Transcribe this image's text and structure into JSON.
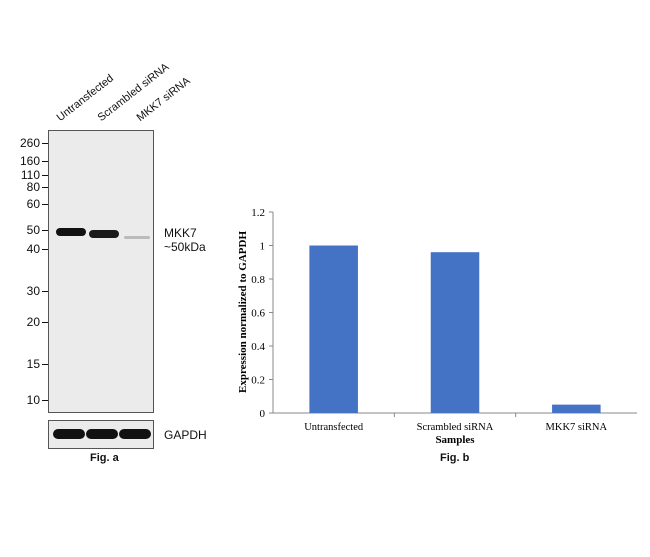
{
  "panel_a": {
    "lane_labels": [
      "Untransfected",
      "Scrambled siRNA",
      "MKK7 siRNA"
    ],
    "mw_markers": [
      "260",
      "160",
      "110",
      "80",
      "60",
      "50",
      "40",
      "30",
      "20",
      "15",
      "10"
    ],
    "target_label": "MKK7",
    "target_size": "~50kDa",
    "loading_control": "GAPDH",
    "caption": "Fig. a"
  },
  "panel_b": {
    "caption": "Fig. b"
  },
  "chart_data": {
    "type": "bar",
    "categories": [
      "Untransfected",
      "Scrambled siRNA",
      "MKK7 siRNA"
    ],
    "values": [
      1.0,
      0.96,
      0.05
    ],
    "ylabel": "Expression normalized to GAPDH",
    "xlabel": "Samples",
    "ylim": [
      0,
      1.2
    ],
    "yticks": [
      "0",
      "0.2",
      "0.4",
      "0.6",
      "0.8",
      "1",
      "1.2"
    ],
    "bar_color": "#4472c4",
    "grid": false,
    "legend": "none"
  }
}
